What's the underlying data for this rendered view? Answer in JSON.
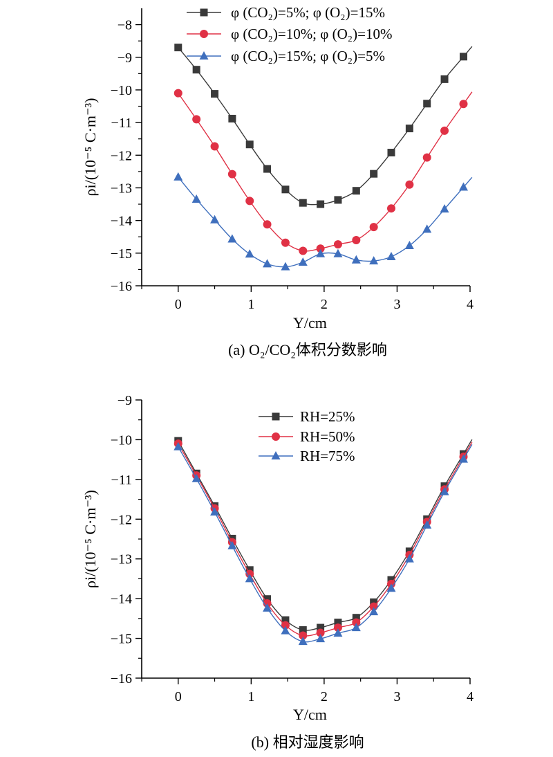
{
  "chart_data": [
    {
      "type": "line",
      "caption": "(a) O₂/CO₂体积分数影响",
      "xlabel": "Y/cm",
      "ylabel": "ρi/(10⁻⁵ C·m⁻³)",
      "xlim": [
        -0.5,
        4.0
      ],
      "ylim": [
        -16,
        -7.5
      ],
      "xticks": [
        0,
        1,
        2,
        3,
        4
      ],
      "yticks": [
        -16,
        -15,
        -14,
        -13,
        -12,
        -11,
        -10,
        -9,
        -8
      ],
      "legend_position": "top",
      "x": [
        0,
        0.25,
        0.5,
        0.74,
        0.98,
        1.22,
        1.47,
        1.71,
        1.95,
        2.19,
        2.44,
        2.68,
        2.92,
        3.17,
        3.41,
        3.65,
        3.91
      ],
      "series": [
        {
          "name": "φ (CO₂)=5%; φ (O₂)=15%",
          "color": "#3a3a3a",
          "marker": "square",
          "values": [
            -8.7,
            -9.38,
            -10.12,
            -10.88,
            -11.67,
            -12.42,
            -13.05,
            -13.46,
            -13.5,
            -13.37,
            -13.09,
            -12.57,
            -11.92,
            -11.18,
            -10.42,
            -9.67,
            -8.98
          ]
        },
        {
          "name": "φ (CO₂)=10%; φ (O₂)=10%",
          "color": "#e03145",
          "marker": "circle",
          "values": [
            -10.1,
            -10.9,
            -11.73,
            -12.58,
            -13.4,
            -14.12,
            -14.68,
            -14.93,
            -14.86,
            -14.73,
            -14.6,
            -14.2,
            -13.63,
            -12.9,
            -12.07,
            -11.25,
            -10.43
          ]
        },
        {
          "name": "φ (CO₂)=15%; φ (O₂)=5%",
          "color": "#3f6fbd",
          "marker": "triangle",
          "values": [
            -12.67,
            -13.35,
            -13.98,
            -14.57,
            -15.03,
            -15.33,
            -15.42,
            -15.28,
            -15.02,
            -15.02,
            -15.21,
            -15.24,
            -15.11,
            -14.77,
            -14.27,
            -13.65,
            -12.98
          ]
        }
      ]
    },
    {
      "type": "line",
      "caption": "(b) 相对湿度影响",
      "xlabel": "Y/cm",
      "ylabel": "ρi/(10⁻⁵ C·m⁻³)",
      "xlim": [
        -0.5,
        4.0
      ],
      "ylim": [
        -16,
        -9
      ],
      "xticks": [
        0,
        1,
        2,
        3,
        4
      ],
      "yticks": [
        -16,
        -15,
        -14,
        -13,
        -12,
        -11,
        -10,
        -9
      ],
      "legend_position": "top-center",
      "x": [
        0,
        0.25,
        0.5,
        0.74,
        0.98,
        1.22,
        1.47,
        1.71,
        1.95,
        2.19,
        2.44,
        2.68,
        2.92,
        3.17,
        3.41,
        3.65,
        3.91
      ],
      "series": [
        {
          "name": "RH=25%",
          "color": "#3a3a3a",
          "marker": "square",
          "values": [
            -10.03,
            -10.85,
            -11.67,
            -12.49,
            -13.28,
            -14.01,
            -14.54,
            -14.79,
            -14.73,
            -14.6,
            -14.48,
            -14.09,
            -13.53,
            -12.81,
            -12.0,
            -11.17,
            -10.36
          ]
        },
        {
          "name": "RH=50%",
          "color": "#e03145",
          "marker": "circle",
          "values": [
            -10.1,
            -10.9,
            -11.73,
            -12.58,
            -13.38,
            -14.12,
            -14.67,
            -14.93,
            -14.86,
            -14.73,
            -14.6,
            -14.2,
            -13.63,
            -12.9,
            -12.07,
            -11.25,
            -10.43
          ]
        },
        {
          "name": "RH=75%",
          "color": "#3f6fbd",
          "marker": "triangle",
          "values": [
            -10.18,
            -10.98,
            -11.82,
            -12.67,
            -13.5,
            -14.24,
            -14.81,
            -15.08,
            -15.01,
            -14.87,
            -14.73,
            -14.33,
            -13.74,
            -13.0,
            -12.15,
            -11.31,
            -10.49
          ]
        }
      ]
    }
  ]
}
